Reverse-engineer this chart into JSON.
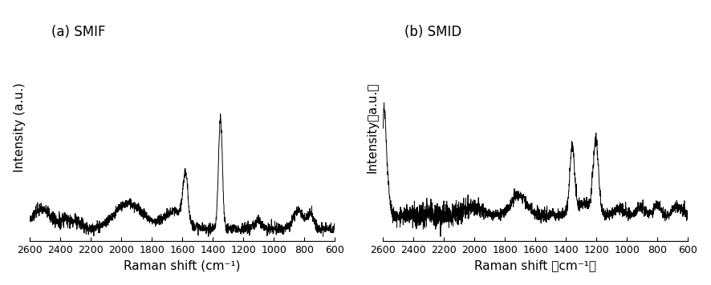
{
  "title_a": "(a) SMIF",
  "title_b": "(b) SMID",
  "xlabel_a": "Raman shift (cm⁻¹)",
  "xlabel_b": "Raman shift （cm⁻¹）",
  "ylabel_a": "Intensity (a.u.)",
  "ylabel_b": "Intensity（a.u.）",
  "xmin": 600,
  "xmax": 2600,
  "xticks": [
    2600,
    2400,
    2200,
    2000,
    1800,
    1600,
    1400,
    1200,
    1000,
    800,
    600
  ],
  "line_color": "#000000",
  "line_width": 0.7,
  "background_color": "#ffffff",
  "title_fontsize": 12,
  "label_fontsize": 11,
  "tick_fontsize": 9
}
